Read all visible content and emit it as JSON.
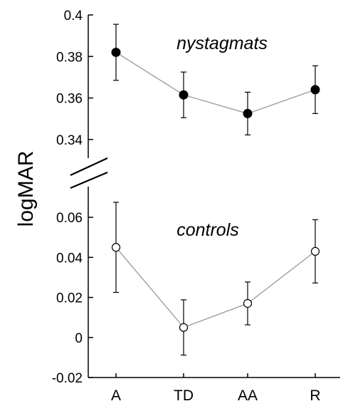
{
  "chart_data": {
    "type": "line",
    "categories": [
      "A",
      "TD",
      "AA",
      "R"
    ],
    "ylabel": "logMAR",
    "xlabel": "",
    "title": "",
    "axis_break": true,
    "grid": false,
    "colors": {
      "axis": "#000000",
      "line": "#999999",
      "filled_marker": "#000000",
      "open_marker": "#ffffff"
    },
    "panels": [
      {
        "annotation": "nystagmats",
        "ylim": [
          0.33,
          0.4
        ],
        "yticks": [
          0.34,
          0.36,
          0.38,
          0.4
        ],
        "ytick_labels": [
          "0.34",
          "0.36",
          "0.38",
          "0.4"
        ],
        "marker": "filled",
        "values": [
          0.382,
          0.3615,
          0.3525,
          0.364
        ],
        "errors": [
          0.0135,
          0.011,
          0.0103,
          0.0115
        ]
      },
      {
        "annotation": "controls",
        "ylim": [
          -0.02,
          0.07
        ],
        "yticks": [
          -0.02,
          0,
          0.02,
          0.04,
          0.06
        ],
        "ytick_labels": [
          "-0.02",
          "0",
          "0.02",
          "0.04",
          "0.06"
        ],
        "marker": "open",
        "values": [
          0.045,
          0.005,
          0.017,
          0.043
        ],
        "errors": [
          0.0225,
          0.0138,
          0.0107,
          0.0158
        ]
      }
    ]
  }
}
